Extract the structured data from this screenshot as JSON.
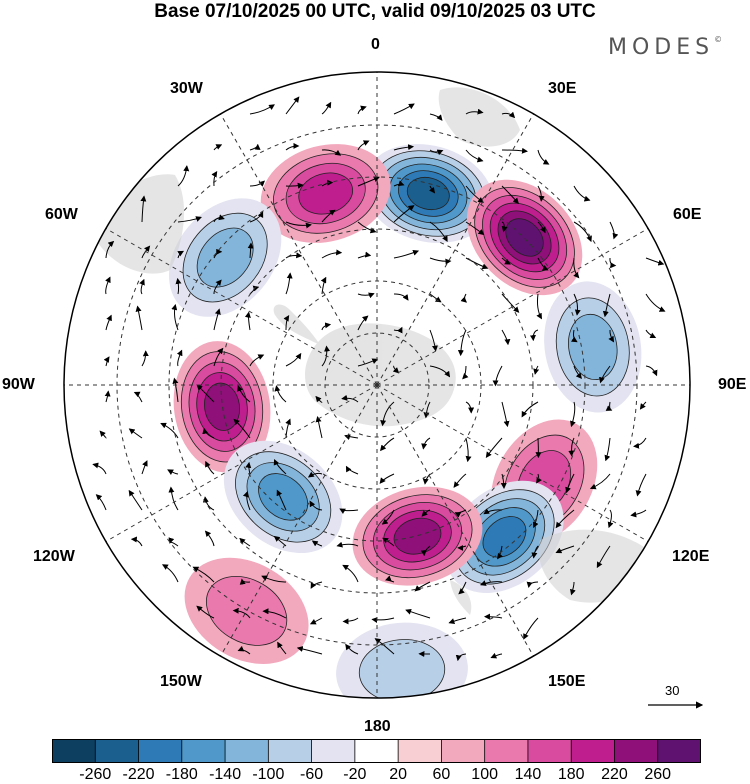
{
  "title": "Base 07/10/2025 00 UTC, valid 09/10/2025 03 UTC",
  "brand": "MODES",
  "brand_mark": "©",
  "longitude_labels": {
    "lon0": "0",
    "lon30e": "30E",
    "lon60e": "60E",
    "lon90e": "90E",
    "lon120e": "120E",
    "lon150e": "150E",
    "lon180": "180",
    "lon150w": "150W",
    "lon120w": "120W",
    "lon90w": "90W",
    "lon60w": "60W",
    "lon30w": "30W"
  },
  "wind_reference": "30",
  "colorbar": {
    "labels": [
      "-260",
      "-220",
      "-180",
      "-140",
      "-100",
      "-60",
      "-20",
      "20",
      "60",
      "100",
      "140",
      "180",
      "220",
      "260"
    ],
    "colors": [
      "#0c3f60",
      "#1b5f8f",
      "#2e7ab6",
      "#4f98c9",
      "#83b5db",
      "#b8cfe8",
      "#e3e3f1",
      "#ffffff",
      "#f8d0d4",
      "#f2a8bd",
      "#ea79ad",
      "#d84b9e",
      "#bf1f8e",
      "#8e1078",
      "#5f1270"
    ]
  },
  "anomaly_centers": [
    {
      "lon": 15,
      "lat_colat": 38,
      "value": -260
    },
    {
      "lon": 45,
      "lat_colat": 40,
      "value": 260
    },
    {
      "lon": 80,
      "lat_colat": 42,
      "value": -160
    },
    {
      "lon": 345,
      "lat_colat": 38,
      "value": 200
    },
    {
      "lon": 310,
      "lat_colat": 38,
      "value": -140
    },
    {
      "lon": 262,
      "lat_colat": 30,
      "value": 240
    },
    {
      "lon": 120,
      "lat_colat": 37,
      "value": 140
    },
    {
      "lon": 140,
      "lat_colat": 38,
      "value": -220
    },
    {
      "lon": 165,
      "lat_colat": 30,
      "value": 220
    },
    {
      "lon": 220,
      "lat_colat": 28,
      "value": -180
    },
    {
      "lon": 175,
      "lat_colat": 55,
      "value": -120
    },
    {
      "lon": 210,
      "lat_colat": 50,
      "value": 120
    }
  ]
}
